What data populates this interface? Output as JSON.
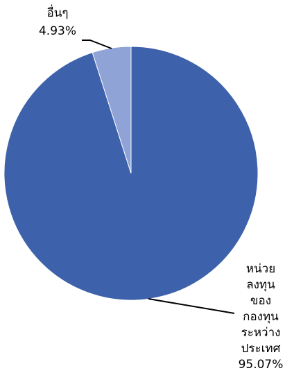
{
  "chart_data": {
    "type": "pie",
    "title": "",
    "slices": [
      {
        "label_lines": [
          "หน่วย",
          "ลงทุน",
          "ของ",
          "กองทุน",
          "ระหว่าง",
          "ประเทศ"
        ],
        "percent_label": "95.07%",
        "value": 95.07,
        "color": "#3d62ab"
      },
      {
        "label_lines": [
          "อื่นๆ"
        ],
        "percent_label": "4.93%",
        "value": 4.93,
        "color": "#8fa3d6"
      }
    ],
    "legend": "none",
    "start_angle": "12 o'clock",
    "direction": "clockwise"
  }
}
